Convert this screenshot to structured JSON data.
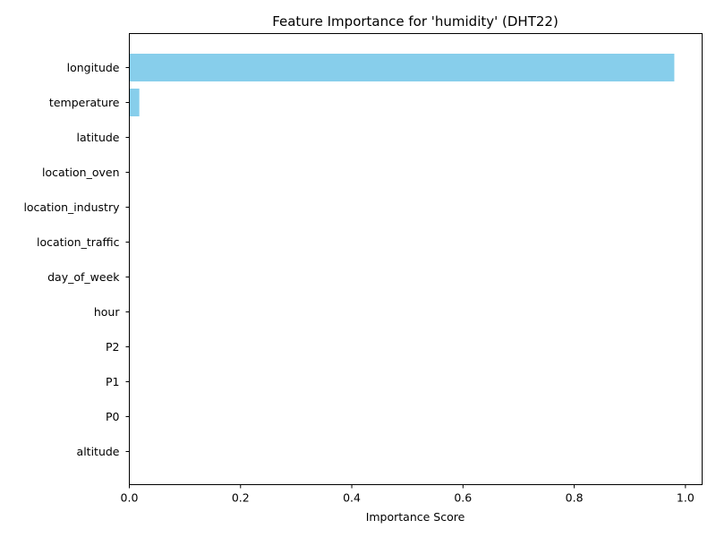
{
  "chart_data": {
    "type": "bar",
    "orientation": "horizontal",
    "title": "Feature Importance for 'humidity' (DHT22)",
    "xlabel": "Importance Score",
    "ylabel": "",
    "xlim": [
      0,
      1.03
    ],
    "xticks": [
      0.0,
      0.2,
      0.4,
      0.6,
      0.8,
      1.0
    ],
    "xtick_labels": [
      "0.0",
      "0.2",
      "0.4",
      "0.6",
      "0.8",
      "1.0"
    ],
    "categories": [
      "longitude",
      "temperature",
      "latitude",
      "location_oven",
      "location_industry",
      "location_traffic",
      "day_of_week",
      "hour",
      "P2",
      "P1",
      "P0",
      "altitude"
    ],
    "values": [
      0.98,
      0.018,
      0,
      0,
      0,
      0,
      0,
      0,
      0,
      0,
      0,
      0
    ],
    "bar_color": "#87CEEB",
    "grid": false,
    "legend": "none"
  }
}
